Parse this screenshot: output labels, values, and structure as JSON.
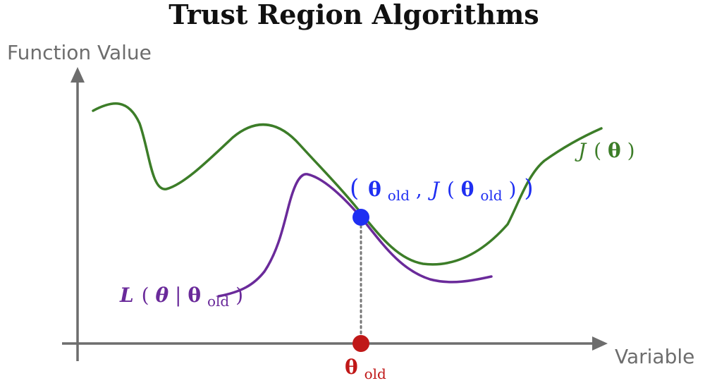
{
  "title": "Trust Region Algorithms",
  "axes": {
    "y_label": "Function Value",
    "x_label": "Variable"
  },
  "colors": {
    "axis": "#6d6d6d",
    "objective": "#3c7d28",
    "surrogate": "#6a2a9a",
    "point": "#1f2ff2",
    "theta_old": "#c01818",
    "dotted": "#777777",
    "title": "#111111"
  },
  "curves": {
    "objective": {
      "label_main": "J",
      "label_open": "(",
      "label_arg": "θ",
      "label_close": ")"
    },
    "surrogate": {
      "label_main": "L",
      "label_open": "(",
      "label_arg": "θ",
      "label_bar": "|",
      "label_base": "θ",
      "label_sub": "old",
      "label_close": ")"
    }
  },
  "point_label": {
    "open": "(",
    "theta": "θ",
    "sub": "old",
    "comma": ",",
    "func": "J",
    "inner_open": "(",
    "inner_theta": "θ",
    "inner_sub": "old",
    "inner_close": ")",
    "close": ")"
  },
  "x_marker": {
    "theta": "θ",
    "sub": "old"
  }
}
